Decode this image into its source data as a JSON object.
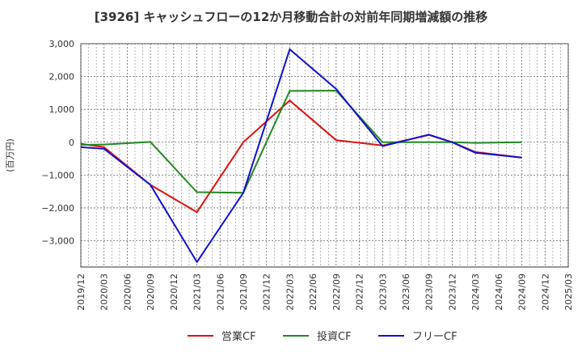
{
  "chart_data": {
    "type": "line",
    "title": "[3926]  キャッシュフローの12か月移動合計の対前年同期増減額の推移",
    "ylabel": "(百万円)",
    "xlabel": "",
    "ylim": [
      -3800,
      3000
    ],
    "y_ticks": [
      3000,
      2000,
      1000,
      0,
      -1000,
      -2000,
      -3000
    ],
    "y_tick_labels": [
      "3,000",
      "2,000",
      "1,000",
      "0",
      "−1,000",
      "−2,000",
      "−3,000"
    ],
    "x_ticks": [
      "2019/12",
      "2020/03",
      "2020/06",
      "2020/09",
      "2020/12",
      "2021/03",
      "2021/06",
      "2021/09",
      "2021/12",
      "2022/03",
      "2022/06",
      "2022/09",
      "2022/12",
      "2023/03",
      "2023/06",
      "2023/09",
      "2023/12",
      "2024/03",
      "2024/06",
      "2024/09",
      "2024/12",
      "2025/03"
    ],
    "grid": true,
    "legend_position": "bottom",
    "series": [
      {
        "name": "営業CF",
        "color": "#dd1111",
        "points": [
          [
            "2019/12",
            -50
          ],
          [
            "2020/03",
            -150
          ],
          [
            "2020/09",
            -1300
          ],
          [
            "2021/03",
            -2130
          ],
          [
            "2021/09",
            0
          ],
          [
            "2022/03",
            1270
          ],
          [
            "2022/09",
            60
          ],
          [
            "2023/03",
            -100
          ],
          [
            "2023/09",
            220
          ],
          [
            "2023/12",
            0
          ],
          [
            "2024/03",
            -300
          ],
          [
            "2024/09",
            -470
          ]
        ]
      },
      {
        "name": "投資CF",
        "color": "#228822",
        "points": [
          [
            "2019/12",
            -80
          ],
          [
            "2020/03",
            -70
          ],
          [
            "2020/09",
            10
          ],
          [
            "2021/03",
            -1520
          ],
          [
            "2021/09",
            -1540
          ],
          [
            "2022/03",
            1560
          ],
          [
            "2022/09",
            1570
          ],
          [
            "2023/03",
            0
          ],
          [
            "2023/09",
            0
          ],
          [
            "2023/12",
            0
          ],
          [
            "2024/03",
            -20
          ],
          [
            "2024/09",
            0
          ]
        ]
      },
      {
        "name": "フリーCF",
        "color": "#1111cc",
        "points": [
          [
            "2019/12",
            -150
          ],
          [
            "2020/03",
            -200
          ],
          [
            "2020/09",
            -1300
          ],
          [
            "2021/03",
            -3650
          ],
          [
            "2021/09",
            -1540
          ],
          [
            "2022/03",
            2830
          ],
          [
            "2022/09",
            1620
          ],
          [
            "2023/03",
            -120
          ],
          [
            "2023/09",
            230
          ],
          [
            "2023/12",
            0
          ],
          [
            "2024/03",
            -320
          ],
          [
            "2024/09",
            -470
          ]
        ]
      }
    ]
  }
}
